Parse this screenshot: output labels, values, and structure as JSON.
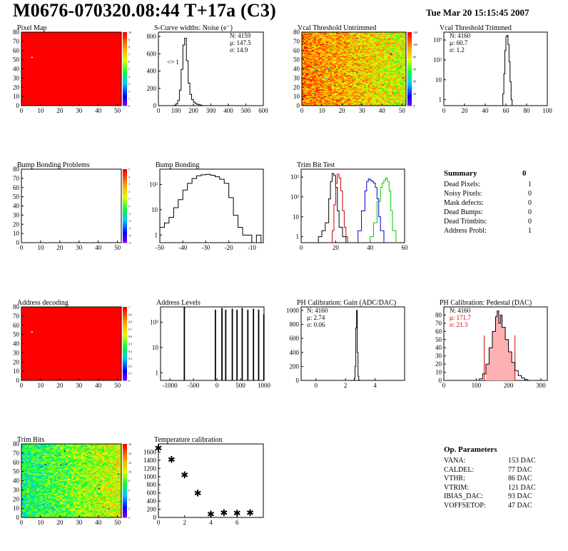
{
  "header": {
    "title": "M0676-070320.08:44 T+17a (C3)",
    "date": "Tue Mar 20 15:15:45 2007"
  },
  "summary": {
    "title": "Summary",
    "value": "0",
    "items": [
      {
        "label": "Dead Pixels:",
        "value": "1"
      },
      {
        "label": "Noisy Pixels:",
        "value": "0"
      },
      {
        "label": "Mask defects:",
        "value": "0"
      },
      {
        "label": "Dead Bumps:",
        "value": "0"
      },
      {
        "label": "Dead Trimbits:",
        "value": "0"
      },
      {
        "label": "Address Probl:",
        "value": "1"
      }
    ]
  },
  "op_params": {
    "title": "Op. Parameters",
    "items": [
      {
        "label": "VANA:",
        "value": "153 DAC"
      },
      {
        "label": "CALDEL:",
        "value": "77 DAC"
      },
      {
        "label": "VTHR:",
        "value": "86 DAC"
      },
      {
        "label": "VTRIM:",
        "value": "121 DAC"
      },
      {
        "label": "IBIAS_DAC:",
        "value": "93 DAC"
      },
      {
        "label": "VOFFSETOP:",
        "value": "47 DAC"
      }
    ]
  },
  "chart_data": [
    {
      "id": "pixel-map",
      "type": "heatmap",
      "title": "Pixel Map",
      "xlim": [
        0,
        52
      ],
      "ylim": [
        0,
        80
      ],
      "xticks": [
        "0",
        "10",
        "20",
        "30",
        "40",
        "50"
      ],
      "yticks": [
        "0",
        "10",
        "20",
        "30",
        "40",
        "50",
        "60",
        "70",
        "80"
      ],
      "zticks": [
        "0",
        "1",
        "2",
        "3",
        "4",
        "5",
        "6",
        "7",
        "8",
        "9",
        "10"
      ],
      "fill": "#ff0000",
      "colormap": "rainbow",
      "marked_pixels": [
        {
          "x": 5,
          "y": 52
        }
      ]
    },
    {
      "id": "scurve-noise",
      "type": "histogram",
      "title": "S-Curve widths: Noise (e⁻)",
      "xlim": [
        0,
        600
      ],
      "ylim": [
        0,
        850
      ],
      "xticks": [
        "0",
        "100",
        "200",
        "300",
        "400",
        "500",
        "600"
      ],
      "yticks": [
        "0",
        "200",
        "400",
        "600",
        "800"
      ],
      "stats": [
        "N: 4159",
        "μ: 147.5",
        "σ: 14.9"
      ],
      "annotation": "<= 1",
      "x": [
        90,
        100,
        110,
        120,
        130,
        140,
        150,
        160,
        170,
        180,
        190,
        200,
        210,
        220,
        230,
        240,
        250
      ],
      "values": [
        5,
        20,
        60,
        180,
        420,
        700,
        780,
        520,
        260,
        130,
        70,
        40,
        25,
        15,
        10,
        5,
        0
      ]
    },
    {
      "id": "vcal-untrimmed",
      "type": "heatmap",
      "title": "Vcal Threshold Untrimmed",
      "xlim": [
        0,
        52
      ],
      "ylim": [
        0,
        80
      ],
      "xticks": [
        "0",
        "10",
        "20",
        "30",
        "40",
        "50"
      ],
      "yticks": [
        "0",
        "10",
        "20",
        "30",
        "40",
        "50",
        "60",
        "70",
        "80"
      ],
      "zticks": [
        "0",
        "20",
        "40",
        "60",
        "80",
        "100",
        "120"
      ],
      "colormap": "rainbow"
    },
    {
      "id": "vcal-trimmed",
      "type": "histogram",
      "title": "Vcal Threshold Trimmed",
      "xlim": [
        0,
        100
      ],
      "log": true,
      "xticks": [
        "0",
        "20",
        "40",
        "60",
        "80",
        "100"
      ],
      "yticks": [
        "1",
        "10",
        "10²",
        "10³"
      ],
      "stats": [
        "N: 4160",
        "μ: 60.7",
        "σ:  1.2"
      ],
      "x": [
        57,
        58,
        59,
        60,
        61,
        62,
        63,
        64,
        65
      ],
      "values": [
        2,
        20,
        300,
        1500,
        1700,
        600,
        80,
        8,
        1
      ]
    },
    {
      "id": "bump-problems",
      "type": "heatmap",
      "title": "Bump Bonding Problems",
      "xlim": [
        0,
        52
      ],
      "ylim": [
        0,
        80
      ],
      "xticks": [
        "0",
        "10",
        "20",
        "30",
        "40",
        "50"
      ],
      "yticks": [
        "0",
        "10",
        "20",
        "30",
        "40",
        "50",
        "60",
        "70",
        "80"
      ],
      "zticks": [
        "-5",
        "-4",
        "-3",
        "-2",
        "-1",
        "0",
        "1",
        "2",
        "3",
        "4",
        "5"
      ],
      "colormap": "rainbow",
      "empty": true
    },
    {
      "id": "bump-bonding",
      "type": "histogram",
      "title": "Bump Bonding",
      "xlim": [
        -50,
        -5
      ],
      "log": true,
      "xticks": [
        "-50",
        "-40",
        "-30",
        "-20",
        "-10"
      ],
      "yticks": [
        "1",
        "10",
        "10²"
      ],
      "x": [
        -50,
        -48,
        -46,
        -44,
        -42,
        -40,
        -38,
        -36,
        -34,
        -32,
        -30,
        -28,
        -26,
        -24,
        -22,
        -20,
        -18,
        -16,
        -14,
        -12,
        -10,
        -8
      ],
      "values": [
        2,
        3,
        5,
        12,
        25,
        60,
        110,
        170,
        220,
        240,
        250,
        230,
        200,
        160,
        110,
        30,
        6,
        2,
        1,
        1,
        0,
        1
      ]
    },
    {
      "id": "trim-bit-test",
      "type": "histogram",
      "title": "Trim Bit Test",
      "xlim": [
        0,
        60
      ],
      "log": true,
      "xticks": [
        "0",
        "20",
        "40",
        "60"
      ],
      "yticks": [
        "1",
        "10",
        "10²",
        "10³"
      ],
      "series": [
        {
          "color": "#000000",
          "x": [
            10,
            12,
            14,
            16,
            17,
            18,
            19,
            20,
            21,
            22,
            24
          ],
          "values": [
            1,
            2,
            5,
            80,
            600,
            1500,
            1200,
            300,
            20,
            3,
            1
          ]
        },
        {
          "color": "#cc0000",
          "x": [
            18,
            19,
            20,
            21,
            22,
            23,
            24,
            25,
            26
          ],
          "values": [
            2,
            40,
            500,
            1400,
            900,
            200,
            20,
            3,
            1
          ]
        },
        {
          "color": "#0000cc",
          "x": [
            33,
            35,
            37,
            38,
            39,
            40,
            41,
            42,
            43,
            44,
            45,
            46
          ],
          "values": [
            2,
            20,
            200,
            600,
            800,
            700,
            600,
            500,
            300,
            80,
            10,
            2
          ]
        },
        {
          "color": "#00cc00",
          "x": [
            40,
            42,
            44,
            46,
            47,
            48,
            49,
            50,
            51,
            52,
            53
          ],
          "values": [
            1,
            5,
            60,
            300,
            500,
            700,
            900,
            600,
            200,
            20,
            2
          ]
        }
      ]
    },
    {
      "id": "address-decoding",
      "type": "heatmap",
      "title": "Address decoding",
      "xlim": [
        0,
        52
      ],
      "ylim": [
        0,
        80
      ],
      "xticks": [
        "0",
        "10",
        "20",
        "30",
        "40",
        "50"
      ],
      "yticks": [
        "0",
        "10",
        "20",
        "30",
        "40",
        "50",
        "60",
        "70",
        "80"
      ],
      "zticks": [
        "0",
        "0.1",
        "0.2",
        "0.3",
        "0.4",
        "0.5",
        "0.6",
        "0.7",
        "0.8",
        "0.9",
        "1"
      ],
      "fill": "#ff0000",
      "colormap": "rainbow",
      "marked_pixels": [
        {
          "x": 5,
          "y": 52
        }
      ]
    },
    {
      "id": "address-levels",
      "type": "histogram",
      "title": "Address Levels",
      "xlim": [
        -1200,
        1000
      ],
      "log": true,
      "xticks": [
        "-1000",
        "-500",
        "0",
        "500",
        "1000"
      ],
      "yticks": [
        "1",
        "10",
        "10²"
      ],
      "x": [
        -700,
        -40,
        100,
        180,
        320,
        420,
        530,
        650,
        770,
        880,
        990
      ],
      "values": [
        400,
        300,
        350,
        300,
        330,
        300,
        350,
        300,
        330,
        300,
        200
      ]
    },
    {
      "id": "ph-gain",
      "type": "histogram",
      "title": "PH Calibration: Gain (ADC/DAC)",
      "xlim": [
        -1,
        6
      ],
      "ylim": [
        0,
        1050
      ],
      "xticks": [
        "0",
        "2",
        "4"
      ],
      "yticks": [
        "0",
        "200",
        "400",
        "600",
        "800",
        "1000"
      ],
      "stats": [
        "N: 4160",
        "μ: 2.74",
        "σ: 0.06"
      ],
      "x": [
        2.55,
        2.6,
        2.65,
        2.7,
        2.75,
        2.8,
        2.85,
        2.9
      ],
      "values": [
        5,
        30,
        200,
        750,
        1000,
        400,
        60,
        5
      ]
    },
    {
      "id": "ph-pedestal",
      "type": "histogram",
      "title": "PH Calibration: Pedestal (DAC)",
      "xlim": [
        0,
        320
      ],
      "ylim": [
        0,
        90
      ],
      "xticks": [
        "0",
        "100",
        "200",
        "300"
      ],
      "yticks": [
        "0",
        "10",
        "20",
        "30",
        "40",
        "50",
        "60",
        "70",
        "80"
      ],
      "stats": [
        "N: 4160",
        "μ: 171.7",
        "σ: 21.3"
      ],
      "fit_range": [
        125,
        220
      ],
      "x": [
        110,
        120,
        130,
        140,
        150,
        160,
        165,
        170,
        175,
        180,
        190,
        200,
        210,
        220,
        230,
        240,
        250
      ],
      "values": [
        2,
        8,
        20,
        40,
        60,
        78,
        85,
        70,
        80,
        65,
        50,
        35,
        22,
        12,
        6,
        3,
        1
      ]
    },
    {
      "id": "trim-bits",
      "type": "heatmap",
      "title": "Trim Bits",
      "xlim": [
        0,
        52
      ],
      "ylim": [
        0,
        80
      ],
      "xticks": [
        "0",
        "10",
        "20",
        "30",
        "40",
        "50"
      ],
      "yticks": [
        "0",
        "10",
        "20",
        "30",
        "40",
        "50",
        "60",
        "70",
        "80"
      ],
      "zticks": [
        "0",
        "2",
        "4",
        "6",
        "8",
        "10",
        "12",
        "14",
        "16"
      ],
      "colormap": "rainbow"
    },
    {
      "id": "temperature-calibration",
      "type": "scatter",
      "title": "Temperature calibration",
      "xlim": [
        0,
        8
      ],
      "ylim": [
        0,
        1800
      ],
      "xticks": [
        "0",
        "2",
        "4",
        "6"
      ],
      "yticks": [
        "0",
        "200",
        "400",
        "600",
        "800",
        "1000",
        "1200",
        "1400",
        "1600"
      ],
      "x": [
        0,
        1,
        2,
        3,
        4,
        5,
        6,
        7
      ],
      "values": [
        1700,
        1420,
        1050,
        600,
        90,
        120,
        110,
        120
      ]
    }
  ]
}
